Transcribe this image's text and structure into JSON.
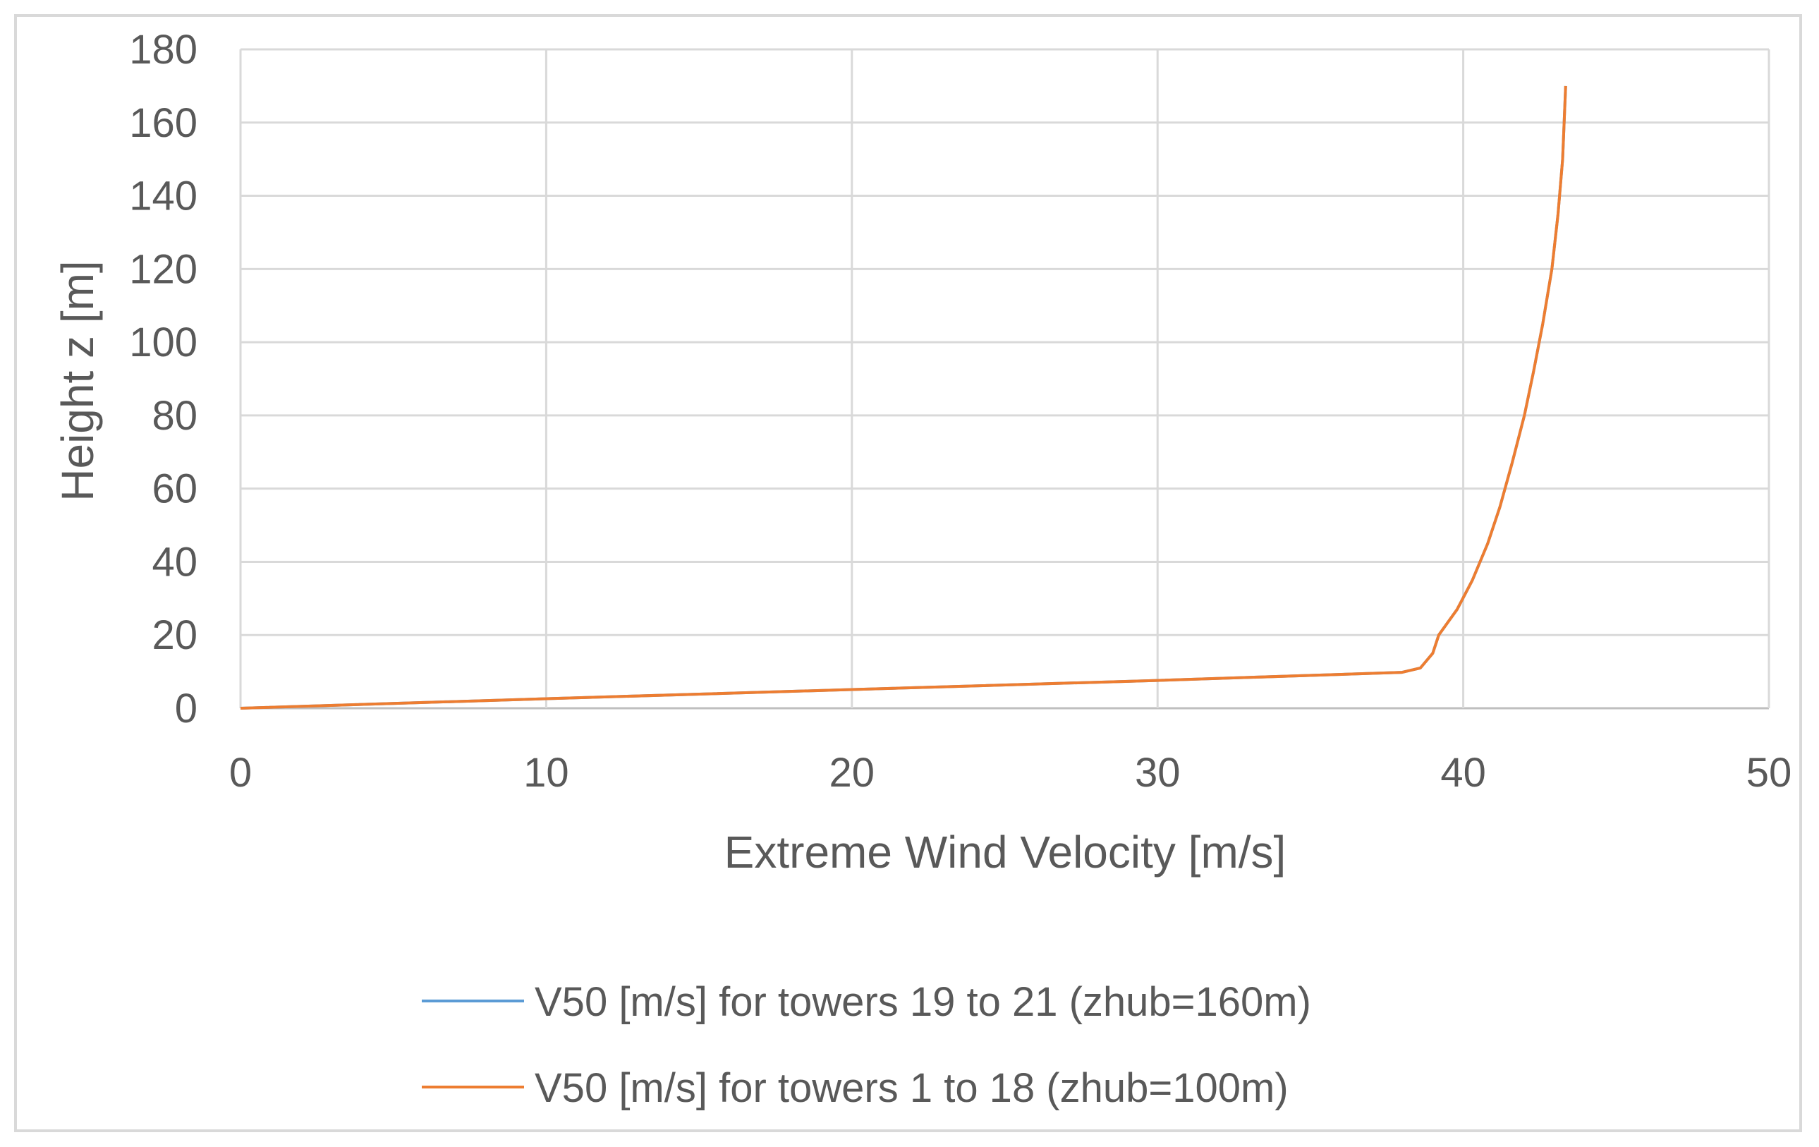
{
  "chart_data": {
    "type": "line",
    "title": "",
    "xlabel": "Extreme Wind Velocity [m/s]",
    "ylabel": "Height z [m]",
    "xlim": [
      0,
      50
    ],
    "ylim": [
      0,
      180
    ],
    "x_ticks": [
      "0",
      "10",
      "20",
      "30",
      "40",
      "50"
    ],
    "y_ticks": [
      "0",
      "20",
      "40",
      "60",
      "80",
      "100",
      "120",
      "140",
      "160",
      "180"
    ],
    "grid": true,
    "legend_position": "bottom",
    "series": [
      {
        "name": "V50 [m/s] for towers 19 to 21 (zhub=160m)",
        "color": "#5b9bd5",
        "points": [
          [
            0,
            0
          ],
          [
            10,
            2.6
          ],
          [
            20,
            5.1
          ],
          [
            30,
            7.6
          ],
          [
            38,
            9.8
          ],
          [
            38.6,
            11
          ],
          [
            39,
            15
          ],
          [
            39.2,
            20
          ],
          [
            39.8,
            27
          ],
          [
            40.3,
            35
          ],
          [
            40.8,
            45
          ],
          [
            41.2,
            55
          ],
          [
            41.6,
            67
          ],
          [
            42,
            80
          ],
          [
            42.3,
            92
          ],
          [
            42.6,
            105
          ],
          [
            42.9,
            120
          ],
          [
            43.1,
            135
          ],
          [
            43.25,
            150
          ],
          [
            43.35,
            170
          ]
        ]
      },
      {
        "name": "V50 [m/s] for towers 1 to 18 (zhub=100m)",
        "color": "#ed7d31",
        "points": [
          [
            0,
            0
          ],
          [
            10,
            2.6
          ],
          [
            20,
            5.1
          ],
          [
            30,
            7.6
          ],
          [
            38,
            9.8
          ],
          [
            38.6,
            11
          ],
          [
            39,
            15
          ],
          [
            39.2,
            20
          ],
          [
            39.8,
            27
          ],
          [
            40.3,
            35
          ],
          [
            40.8,
            45
          ],
          [
            41.2,
            55
          ],
          [
            41.6,
            67
          ],
          [
            42,
            80
          ],
          [
            42.3,
            92
          ],
          [
            42.6,
            105
          ],
          [
            42.9,
            120
          ],
          [
            43.1,
            135
          ],
          [
            43.25,
            150
          ],
          [
            43.35,
            170
          ]
        ]
      }
    ]
  }
}
